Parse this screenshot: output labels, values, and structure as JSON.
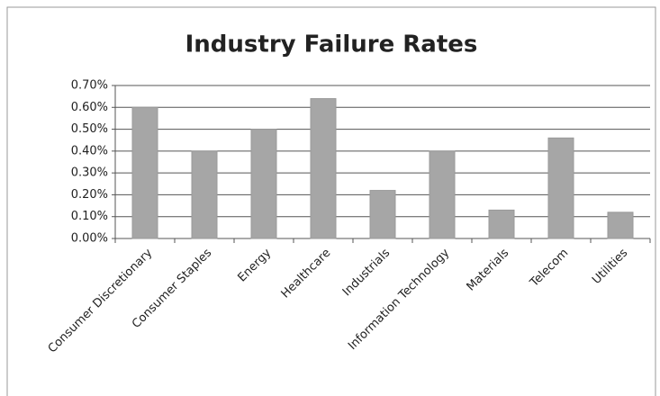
{
  "chart_data": {
    "type": "bar",
    "title": "Industry Failure Rates",
    "categories": [
      "Consumer Discretionary",
      "Consumer Staples",
      "Energy",
      "Healthcare",
      "Industrials",
      "Information Technology",
      "Materials",
      "Telecom",
      "Utilities"
    ],
    "values": [
      0.6,
      0.4,
      0.5,
      0.64,
      0.22,
      0.4,
      0.13,
      0.46,
      0.12
    ],
    "color": "#a6a6a6",
    "ylim": [
      0,
      0.7
    ],
    "yticks": [
      {
        "value": 0,
        "label": "0.00%"
      },
      {
        "value": 0.1,
        "label": "0.10%"
      },
      {
        "value": 0.2,
        "label": "0.20%"
      },
      {
        "value": 0.3,
        "label": "0.30%"
      },
      {
        "value": 0.4,
        "label": "0.40%"
      },
      {
        "value": 0.5,
        "label": "0.50%"
      },
      {
        "value": 0.6,
        "label": "0.60%"
      },
      {
        "value": 0.7,
        "label": "0.70%"
      }
    ],
    "grid": true
  }
}
